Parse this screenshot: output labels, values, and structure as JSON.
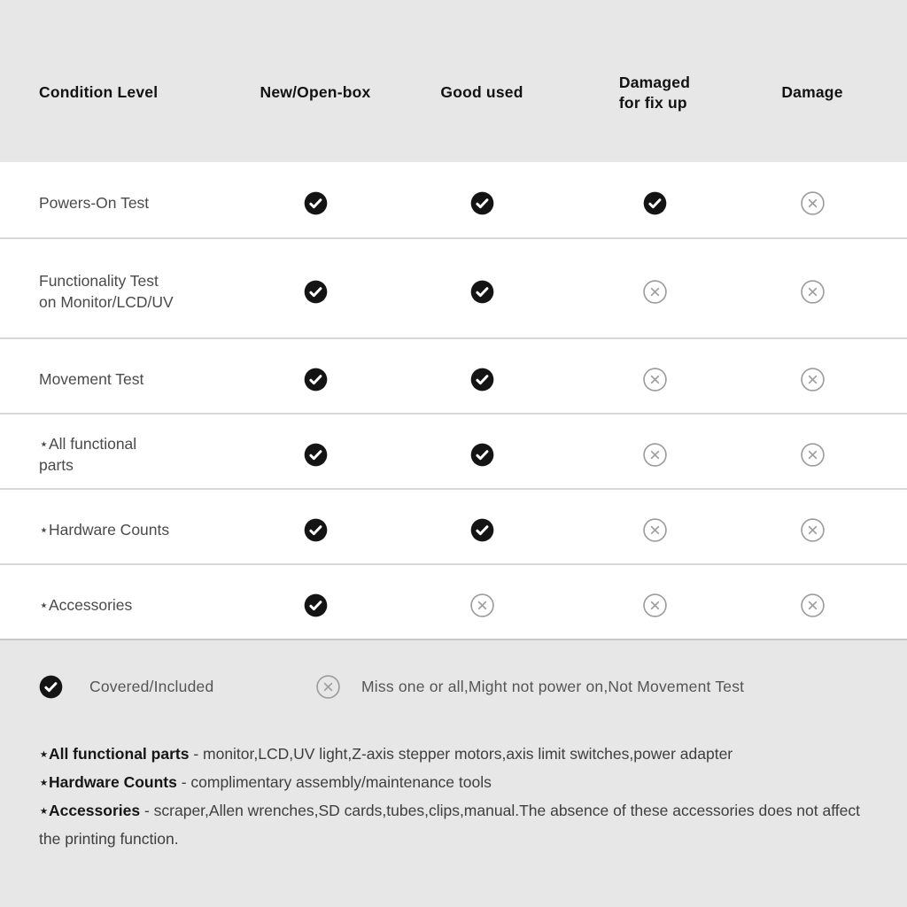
{
  "table": {
    "header": {
      "condition_level": "Condition Level",
      "columns": [
        "New/Open-box",
        "Good used",
        "Damaged\nfor fix up",
        "Damage"
      ]
    },
    "rows": [
      {
        "label": "Powers-On Test",
        "values": [
          "check",
          "check",
          "check",
          "cross"
        ]
      },
      {
        "label": "Functionality Test\non Monitor/LCD/UV",
        "values": [
          "check",
          "check",
          "cross",
          "cross"
        ]
      },
      {
        "label": "Movement Test",
        "values": [
          "check",
          "check",
          "cross",
          "cross"
        ]
      },
      {
        "label": "⋆All functional\nparts",
        "values": [
          "check",
          "check",
          "cross",
          "cross"
        ]
      },
      {
        "label": "⋆Hardware Counts",
        "values": [
          "check",
          "check",
          "cross",
          "cross"
        ]
      },
      {
        "label": "⋆Accessories",
        "values": [
          "check",
          "cross",
          "cross",
          "cross"
        ]
      }
    ]
  },
  "legend": {
    "covered": {
      "icon": "check",
      "label": "Covered/Included"
    },
    "missing": {
      "icon": "cross",
      "label": "Miss one or all,Might not power on,Not Movement Test"
    }
  },
  "footnotes": [
    {
      "term": "⋆All functional parts",
      "text": "- monitor,LCD,UV light,Z-axis stepper motors,axis limit switches,power adapter"
    },
    {
      "term": "⋆Hardware Counts",
      "text": "- complimentary assembly/maintenance tools"
    },
    {
      "term": "⋆Accessories",
      "text": "- scraper,Allen wrenches,SD cards,tubes,clips,manual.The absence of these accessories does not affect the printing function."
    }
  ],
  "colors": {
    "header_bg": "#e7e7e7",
    "row_bg": "#ffffff",
    "row_divider": "#d8d8d8",
    "check_bg": "#141414",
    "check_mark": "#ffffff",
    "cross_stroke": "#9c9c9c"
  }
}
